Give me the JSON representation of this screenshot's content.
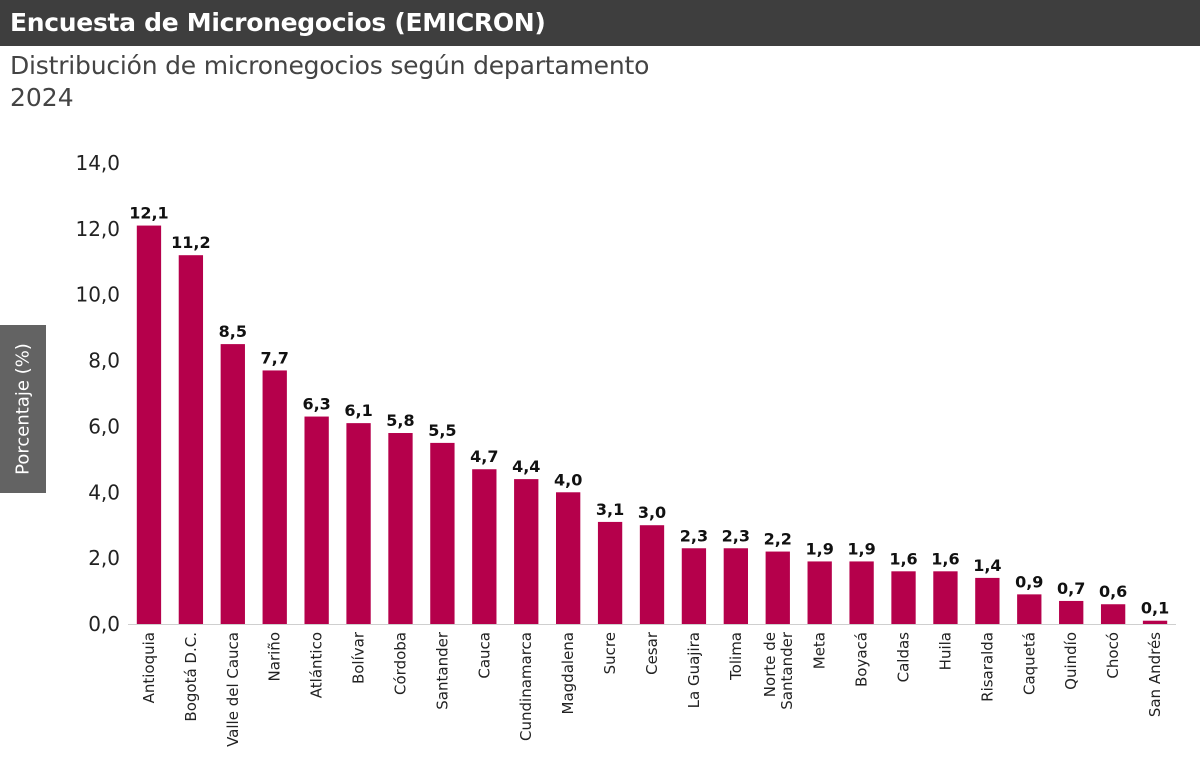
{
  "header": {
    "title": "Encuesta de Micronegocios (EMICRON)"
  },
  "chart_data": {
    "type": "bar",
    "title": "Distribución de micronegocios según departamento",
    "subtitle": "2024",
    "ylabel": "Porcentaje (%)",
    "xlabel": "",
    "ylim": [
      0,
      14
    ],
    "yticks": [
      "0,0",
      "2,0",
      "4,0",
      "6,0",
      "8,0",
      "10,0",
      "12,0",
      "14,0"
    ],
    "grid": false,
    "bar_color": "#b5004b",
    "categories": [
      "Antioquia",
      "Bogotá D.C.",
      "Valle del Cauca",
      "Nariño",
      "Atlántico",
      "Bolívar",
      "Córdoba",
      "Santander",
      "Cauca",
      "Cundinamarca",
      "Magdalena",
      "Sucre",
      "Cesar",
      "La Guajira",
      "Tolima",
      "Norte de Santander",
      "Meta",
      "Boyacá",
      "Caldas",
      "Huila",
      "Risaralda",
      "Caquetá",
      "Quindío",
      "Chocó",
      "San Andrés"
    ],
    "values": [
      12.1,
      11.2,
      8.5,
      7.7,
      6.3,
      6.1,
      5.8,
      5.5,
      4.7,
      4.4,
      4.0,
      3.1,
      3.0,
      2.3,
      2.3,
      2.2,
      1.9,
      1.9,
      1.6,
      1.6,
      1.4,
      0.9,
      0.7,
      0.6,
      0.1
    ],
    "value_labels": [
      "12,1",
      "11,2",
      "8,5",
      "7,7",
      "6,3",
      "6,1",
      "5,8",
      "5,5",
      "4,7",
      "4,4",
      "4,0",
      "3,1",
      "3,0",
      "2,3",
      "2,3",
      "2,2",
      "1,9",
      "1,9",
      "1,6",
      "1,6",
      "1,4",
      "0,9",
      "0,7",
      "0,6",
      "0,1"
    ]
  }
}
